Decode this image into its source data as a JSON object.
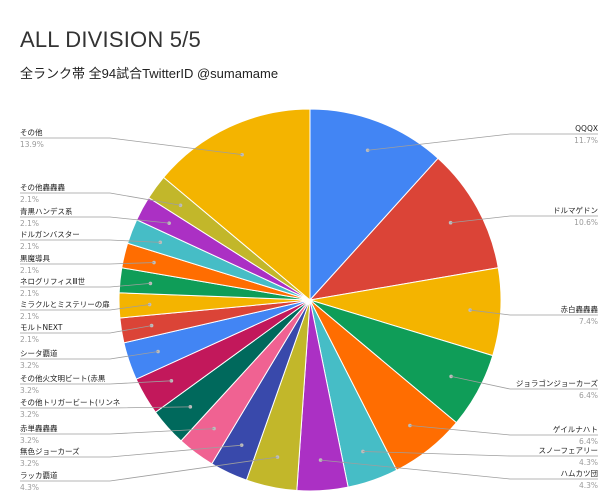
{
  "title": "ALL DIVISION 5/5",
  "subtitle": "全ランク帯 全94試合TwitterID @sumamame",
  "chart_data": {
    "type": "pie",
    "title": "ALL DIVISION 5/5",
    "subtitle": "全ランク帯 全94試合TwitterID @sumamame",
    "slices": [
      {
        "label": "QQQX",
        "value": 11.7,
        "pct_label": "11.7%",
        "color": "#4285F4"
      },
      {
        "label": "ドルマゲドン",
        "value": 10.6,
        "pct_label": "10.6%",
        "color": "#DB4437"
      },
      {
        "label": "赤白轟轟轟",
        "value": 7.4,
        "pct_label": "7.4%",
        "color": "#F4B400"
      },
      {
        "label": "ジョラゴンジョーカーズ",
        "value": 6.4,
        "pct_label": "6.4%",
        "color": "#0F9D58"
      },
      {
        "label": "ゲイルナハト",
        "value": 6.4,
        "pct_label": "6.4%",
        "color": "#FF6D01"
      },
      {
        "label": "スノーフェアリー",
        "value": 4.3,
        "pct_label": "4.3%",
        "color": "#46BDC6"
      },
      {
        "label": "ハムカツ団",
        "value": 4.3,
        "pct_label": "4.3%",
        "color": "#AB30C4"
      },
      {
        "label": "ラッカ覇道",
        "value": 4.3,
        "pct_label": "4.3%",
        "color": "#C2B72A"
      },
      {
        "label": "無色ジョーカーズ",
        "value": 3.2,
        "pct_label": "3.2%",
        "color": "#3949AB"
      },
      {
        "label": "赤単轟轟轟",
        "value": 3.2,
        "pct_label": "3.2%",
        "color": "#F06292"
      },
      {
        "label": "その他トリガービート(リンネ",
        "value": 3.2,
        "pct_label": "3.2%",
        "color": "#00695C"
      },
      {
        "label": "その他火文明ビート(赤黒",
        "value": 3.2,
        "pct_label": "3.2%",
        "color": "#C2185B"
      },
      {
        "label": "シータ覇道",
        "value": 3.2,
        "pct_label": "3.2%",
        "color": "#4285F4"
      },
      {
        "label": "モルトNEXT",
        "value": 2.1,
        "pct_label": "2.1%",
        "color": "#DB4437"
      },
      {
        "label": "ミラクルとミステリーの扉",
        "value": 2.1,
        "pct_label": "2.1%",
        "color": "#F4B400"
      },
      {
        "label": "ネログリフィスⅢ世",
        "value": 2.1,
        "pct_label": "2.1%",
        "color": "#0F9D58"
      },
      {
        "label": "黒魔導具",
        "value": 2.1,
        "pct_label": "2.1%",
        "color": "#FF6D01"
      },
      {
        "label": "ドルガンバスター",
        "value": 2.1,
        "pct_label": "2.1%",
        "color": "#46BDC6"
      },
      {
        "label": "青黒ハンデス系",
        "value": 2.1,
        "pct_label": "2.1%",
        "color": "#AB30C4"
      },
      {
        "label": "その他轟轟轟",
        "value": 2.1,
        "pct_label": "2.1%",
        "color": "#C2B72A"
      },
      {
        "label": "その他",
        "value": 13.9,
        "pct_label": "13.9%",
        "color": "#F4B400"
      }
    ]
  }
}
